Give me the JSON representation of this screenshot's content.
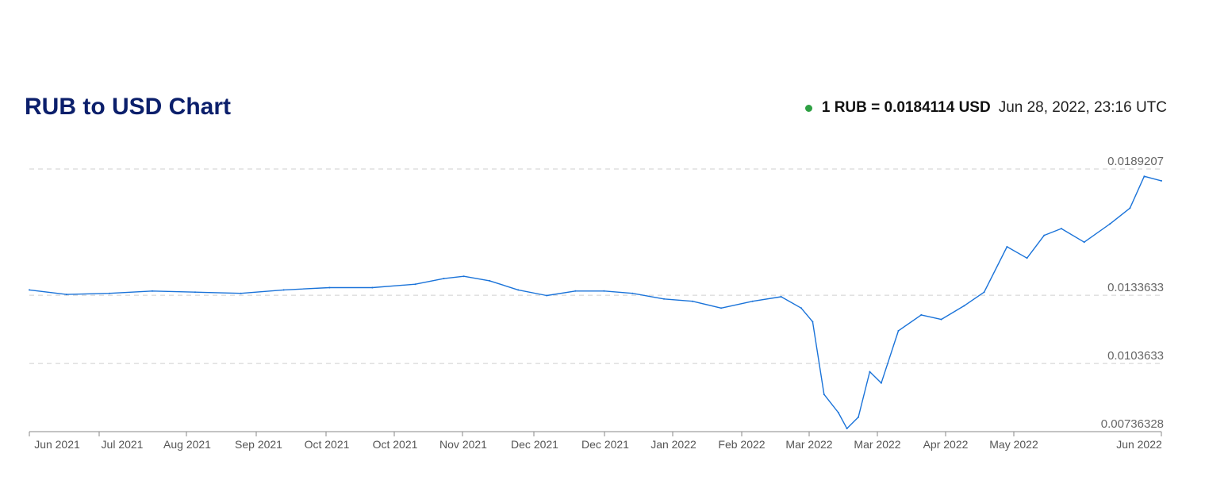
{
  "header": {
    "title": "RUB to USD Chart",
    "rate_text": "1 RUB = 0.0184114 USD",
    "timestamp": "Jun 28, 2022, 23:16 UTC",
    "live_dot_color": "#2ea043"
  },
  "chart_data": {
    "type": "line",
    "title": "RUB to USD Chart",
    "xlabel": "",
    "ylabel": "",
    "series_color": "#1a73d9",
    "grid": "horizontal dashed",
    "y_ticks": [
      "0.0189207",
      "0.0133633",
      "0.0103633",
      "0.00736328"
    ],
    "y_tick_values": [
      0.0189207,
      0.0133633,
      0.0103633,
      0.00736328
    ],
    "ylim": [
      0.00736328,
      0.0189207
    ],
    "x_tick_labels": [
      "Jun 2021",
      "Jul 2021",
      "Aug 2021",
      "Sep 2021",
      "Oct 2021",
      "Oct 2021",
      "Nov 2021",
      "Dec 2021",
      "Dec 2021",
      "Jan 2022",
      "Feb 2022",
      "Mar 2022",
      "Mar 2022",
      "Apr 2022",
      "May 2022",
      "Jun 2022"
    ],
    "x": [
      "2021-05-28",
      "2021-06-10",
      "2021-06-25",
      "2021-07-10",
      "2021-07-25",
      "2021-08-10",
      "2021-08-25",
      "2021-09-10",
      "2021-09-25",
      "2021-10-10",
      "2021-10-20",
      "2021-10-27",
      "2021-11-05",
      "2021-11-15",
      "2021-11-25",
      "2021-12-05",
      "2021-12-15",
      "2021-12-25",
      "2022-01-05",
      "2022-01-15",
      "2022-01-25",
      "2022-02-05",
      "2022-02-15",
      "2022-02-22",
      "2022-02-26",
      "2022-03-02",
      "2022-03-07",
      "2022-03-10",
      "2022-03-14",
      "2022-03-18",
      "2022-03-22",
      "2022-03-28",
      "2022-04-05",
      "2022-04-12",
      "2022-04-20",
      "2022-04-27",
      "2022-05-05",
      "2022-05-12",
      "2022-05-18",
      "2022-05-24",
      "2022-06-01",
      "2022-06-10",
      "2022-06-17",
      "2022-06-22",
      "2022-06-28"
    ],
    "values": [
      0.0136,
      0.0134,
      0.01345,
      0.01355,
      0.0135,
      0.01345,
      0.0136,
      0.0137,
      0.0137,
      0.01385,
      0.0141,
      0.0142,
      0.014,
      0.0136,
      0.01335,
      0.01355,
      0.01355,
      0.01345,
      0.0132,
      0.0131,
      0.0128,
      0.0131,
      0.0133,
      0.0128,
      0.0122,
      0.009,
      0.0082,
      0.0075,
      0.008,
      0.01,
      0.0095,
      0.0118,
      0.0125,
      0.0123,
      0.0129,
      0.0135,
      0.0155,
      0.015,
      0.016,
      0.0163,
      0.0157,
      0.0165,
      0.0172,
      0.0186,
      0.0184
    ]
  }
}
